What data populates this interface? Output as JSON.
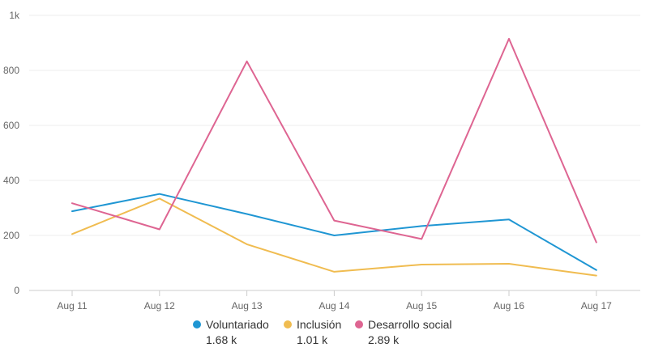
{
  "chart_data": {
    "type": "line",
    "categories": [
      "Aug 11",
      "Aug 12",
      "Aug 13",
      "Aug 14",
      "Aug 15",
      "Aug 16",
      "Aug 17"
    ],
    "y_ticks": [
      "0",
      "200",
      "400",
      "600",
      "800",
      "1k"
    ],
    "ylim": [
      0,
      1000
    ],
    "grid": true,
    "legend_position": "bottom",
    "series": [
      {
        "name": "Voluntariado",
        "color": "#1f96d3",
        "values": [
          288,
          351,
          278,
          200,
          234,
          258,
          74
        ],
        "total_label": "1.68 k"
      },
      {
        "name": "Inclusión",
        "color": "#f0bc50",
        "values": [
          205,
          334,
          168,
          68,
          94,
          97,
          54
        ],
        "total_label": "1.01 k"
      },
      {
        "name": "Desarrollo social",
        "color": "#de6592",
        "values": [
          317,
          222,
          833,
          254,
          187,
          915,
          175
        ],
        "total_label": "2.89 k"
      }
    ]
  }
}
